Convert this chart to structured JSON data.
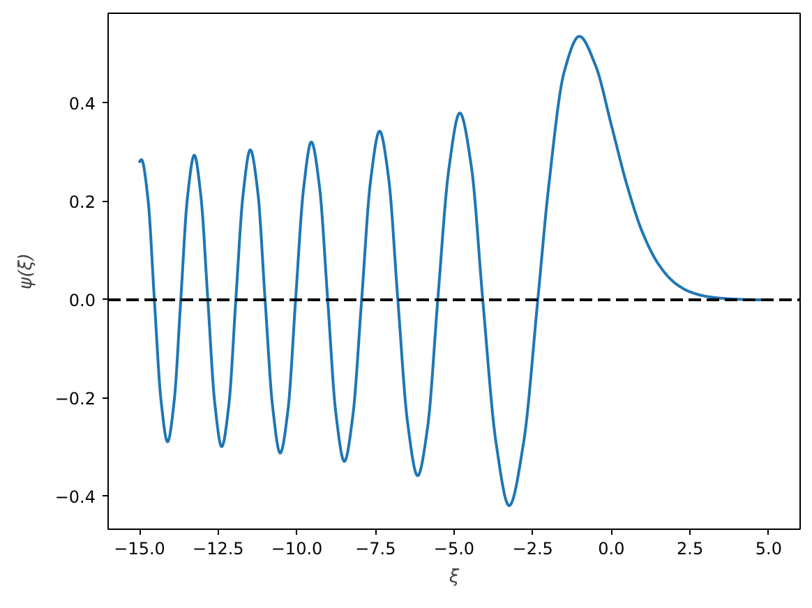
{
  "chart_data": {
    "type": "line",
    "xlabel": "ξ",
    "ylabel": "ψ(ξ)",
    "x": [
      -15.0,
      -14.94,
      -14.73,
      -14.53,
      -14.32,
      -14.11,
      -13.9,
      -13.69,
      -13.48,
      -13.26,
      -13.05,
      -12.83,
      -12.61,
      -12.39,
      -12.16,
      -11.94,
      -11.71,
      -11.48,
      -11.24,
      -11.01,
      -10.77,
      -10.53,
      -10.28,
      -10.04,
      -9.79,
      -9.54,
      -9.28,
      -9.02,
      -8.76,
      -8.49,
      -8.22,
      -7.94,
      -7.66,
      -7.37,
      -7.08,
      -6.79,
      -6.48,
      -6.16,
      -5.84,
      -5.52,
      -5.17,
      -4.82,
      -4.45,
      -4.09,
      -3.67,
      -3.25,
      -2.79,
      -2.34,
      -2.0,
      -1.5,
      -1.02,
      -0.5,
      0.0,
      0.5,
      1.0,
      1.5,
      2.0,
      2.5,
      3.0,
      3.5,
      4.0,
      4.5,
      5.0
    ],
    "series": [
      {
        "color": "#1f77b4",
        "values": [
          0.281,
          0.285,
          0.203,
          0.0,
          -0.204,
          -0.289,
          -0.206,
          0.0,
          0.207,
          0.294,
          0.21,
          0.0,
          -0.21,
          -0.299,
          -0.213,
          0.0,
          0.214,
          0.305,
          0.218,
          0.0,
          -0.218,
          -0.312,
          -0.223,
          0.0,
          0.224,
          0.321,
          0.23,
          0.0,
          -0.231,
          -0.329,
          -0.236,
          0.0,
          0.24,
          0.343,
          0.246,
          0.0,
          -0.25,
          -0.358,
          -0.258,
          0.0,
          0.265,
          0.38,
          0.27,
          0.0,
          -0.29,
          -0.419,
          -0.29,
          0.0,
          0.227,
          0.464,
          0.536,
          0.476,
          0.355,
          0.232,
          0.135,
          0.072,
          0.035,
          0.016,
          0.007,
          0.003,
          0.001,
          0.0,
          0.0
        ]
      }
    ],
    "xlim": [
      -16,
      6
    ],
    "ylim": [
      -0.467,
      0.583
    ],
    "xticks": [
      {
        "value": -15,
        "label": "−15.0"
      },
      {
        "value": -12.5,
        "label": "−12.5"
      },
      {
        "value": -10,
        "label": "−10.0"
      },
      {
        "value": -7.5,
        "label": "−7.5"
      },
      {
        "value": -5,
        "label": "−5.0"
      },
      {
        "value": -2.5,
        "label": "−2.5"
      },
      {
        "value": 0,
        "label": "0.0"
      },
      2.5,
      {
        "value": 5,
        "label": "5.0"
      }
    ],
    "yticks": [
      {
        "value": -0.4,
        "label": "−0.4"
      },
      {
        "value": -0.2,
        "label": "−0.2"
      },
      {
        "value": 0,
        "label": "0.0"
      },
      0.2,
      0.4
    ],
    "ref_lines": [
      {
        "axis": "y",
        "value": 0,
        "color": "#000000",
        "line_style": "dashed"
      }
    ]
  }
}
